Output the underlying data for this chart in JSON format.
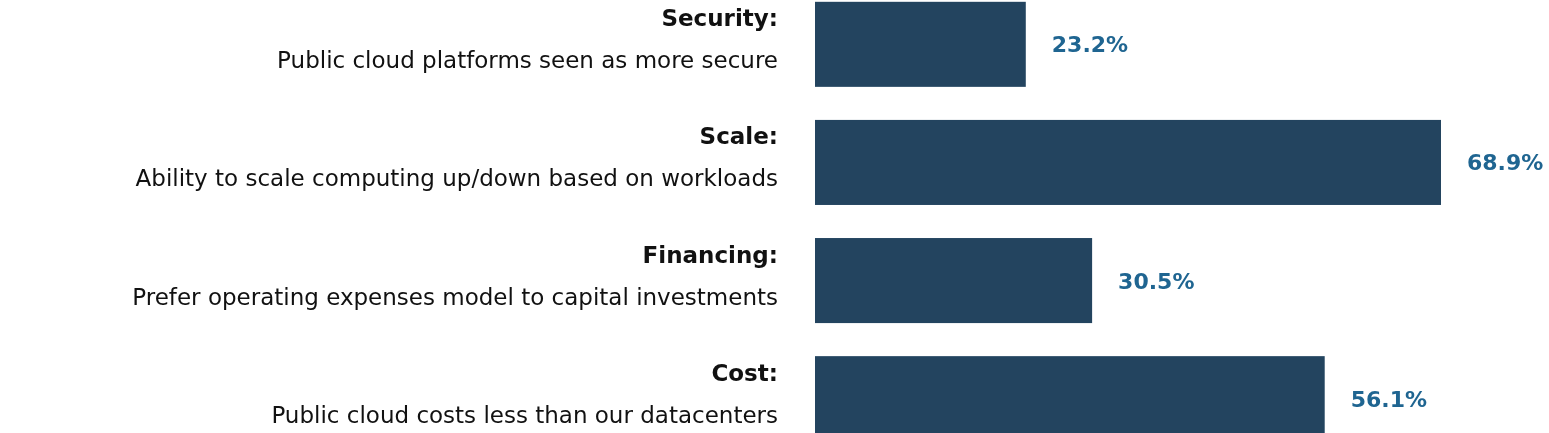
{
  "chart_data": {
    "type": "bar",
    "orientation": "horizontal",
    "categories": [
      "Security:\nPublic cloud platforms seen as more secure",
      "Scale:\nAbility to scale computing up/down based on workloads",
      "Financing:\nPrefer operating expenses model to capital investments",
      "Cost:\nPublic cloud costs less than our datacenters"
    ],
    "values": [
      23.2,
      68.9,
      30.5,
      56.1
    ],
    "value_labels": [
      "23.2%",
      "68.9%",
      "30.5%",
      "56.1%"
    ],
    "color": "#23445f"
  }
}
